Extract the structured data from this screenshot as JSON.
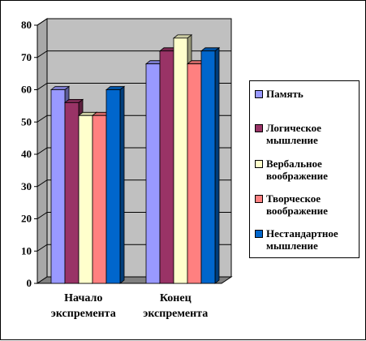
{
  "chart_data": {
    "type": "bar",
    "title": "",
    "xlabel": "",
    "ylabel": "",
    "categories": [
      [
        "Начало",
        "экспремента"
      ],
      [
        "Конец",
        "экспремента"
      ]
    ],
    "ylim": [
      0,
      80
    ],
    "yticks": [
      0,
      10,
      20,
      30,
      40,
      50,
      60,
      70,
      80
    ],
    "grid": true,
    "legend_position": "right",
    "series": [
      {
        "name": "Память",
        "color": "#9999ff",
        "values": [
          60,
          68
        ]
      },
      {
        "name": "Логическое мышление",
        "lines": [
          "Логическое",
          "мышление"
        ],
        "color": "#993366",
        "values": [
          56,
          72
        ]
      },
      {
        "name": "Вербальное воображение",
        "lines": [
          "Вербальное",
          "воображение"
        ],
        "color": "#ffffcc",
        "values": [
          52,
          76
        ]
      },
      {
        "name": "Творческое воображение",
        "lines": [
          "Творческое",
          "воображение"
        ],
        "color": "#ff8080",
        "values": [
          52,
          68
        ]
      },
      {
        "name": "Нестандартное мышление",
        "lines": [
          "Нестандартное",
          "мышление"
        ],
        "color": "#0066cc",
        "values": [
          60,
          72
        ]
      }
    ],
    "wall_color": "#c0c0c0"
  }
}
